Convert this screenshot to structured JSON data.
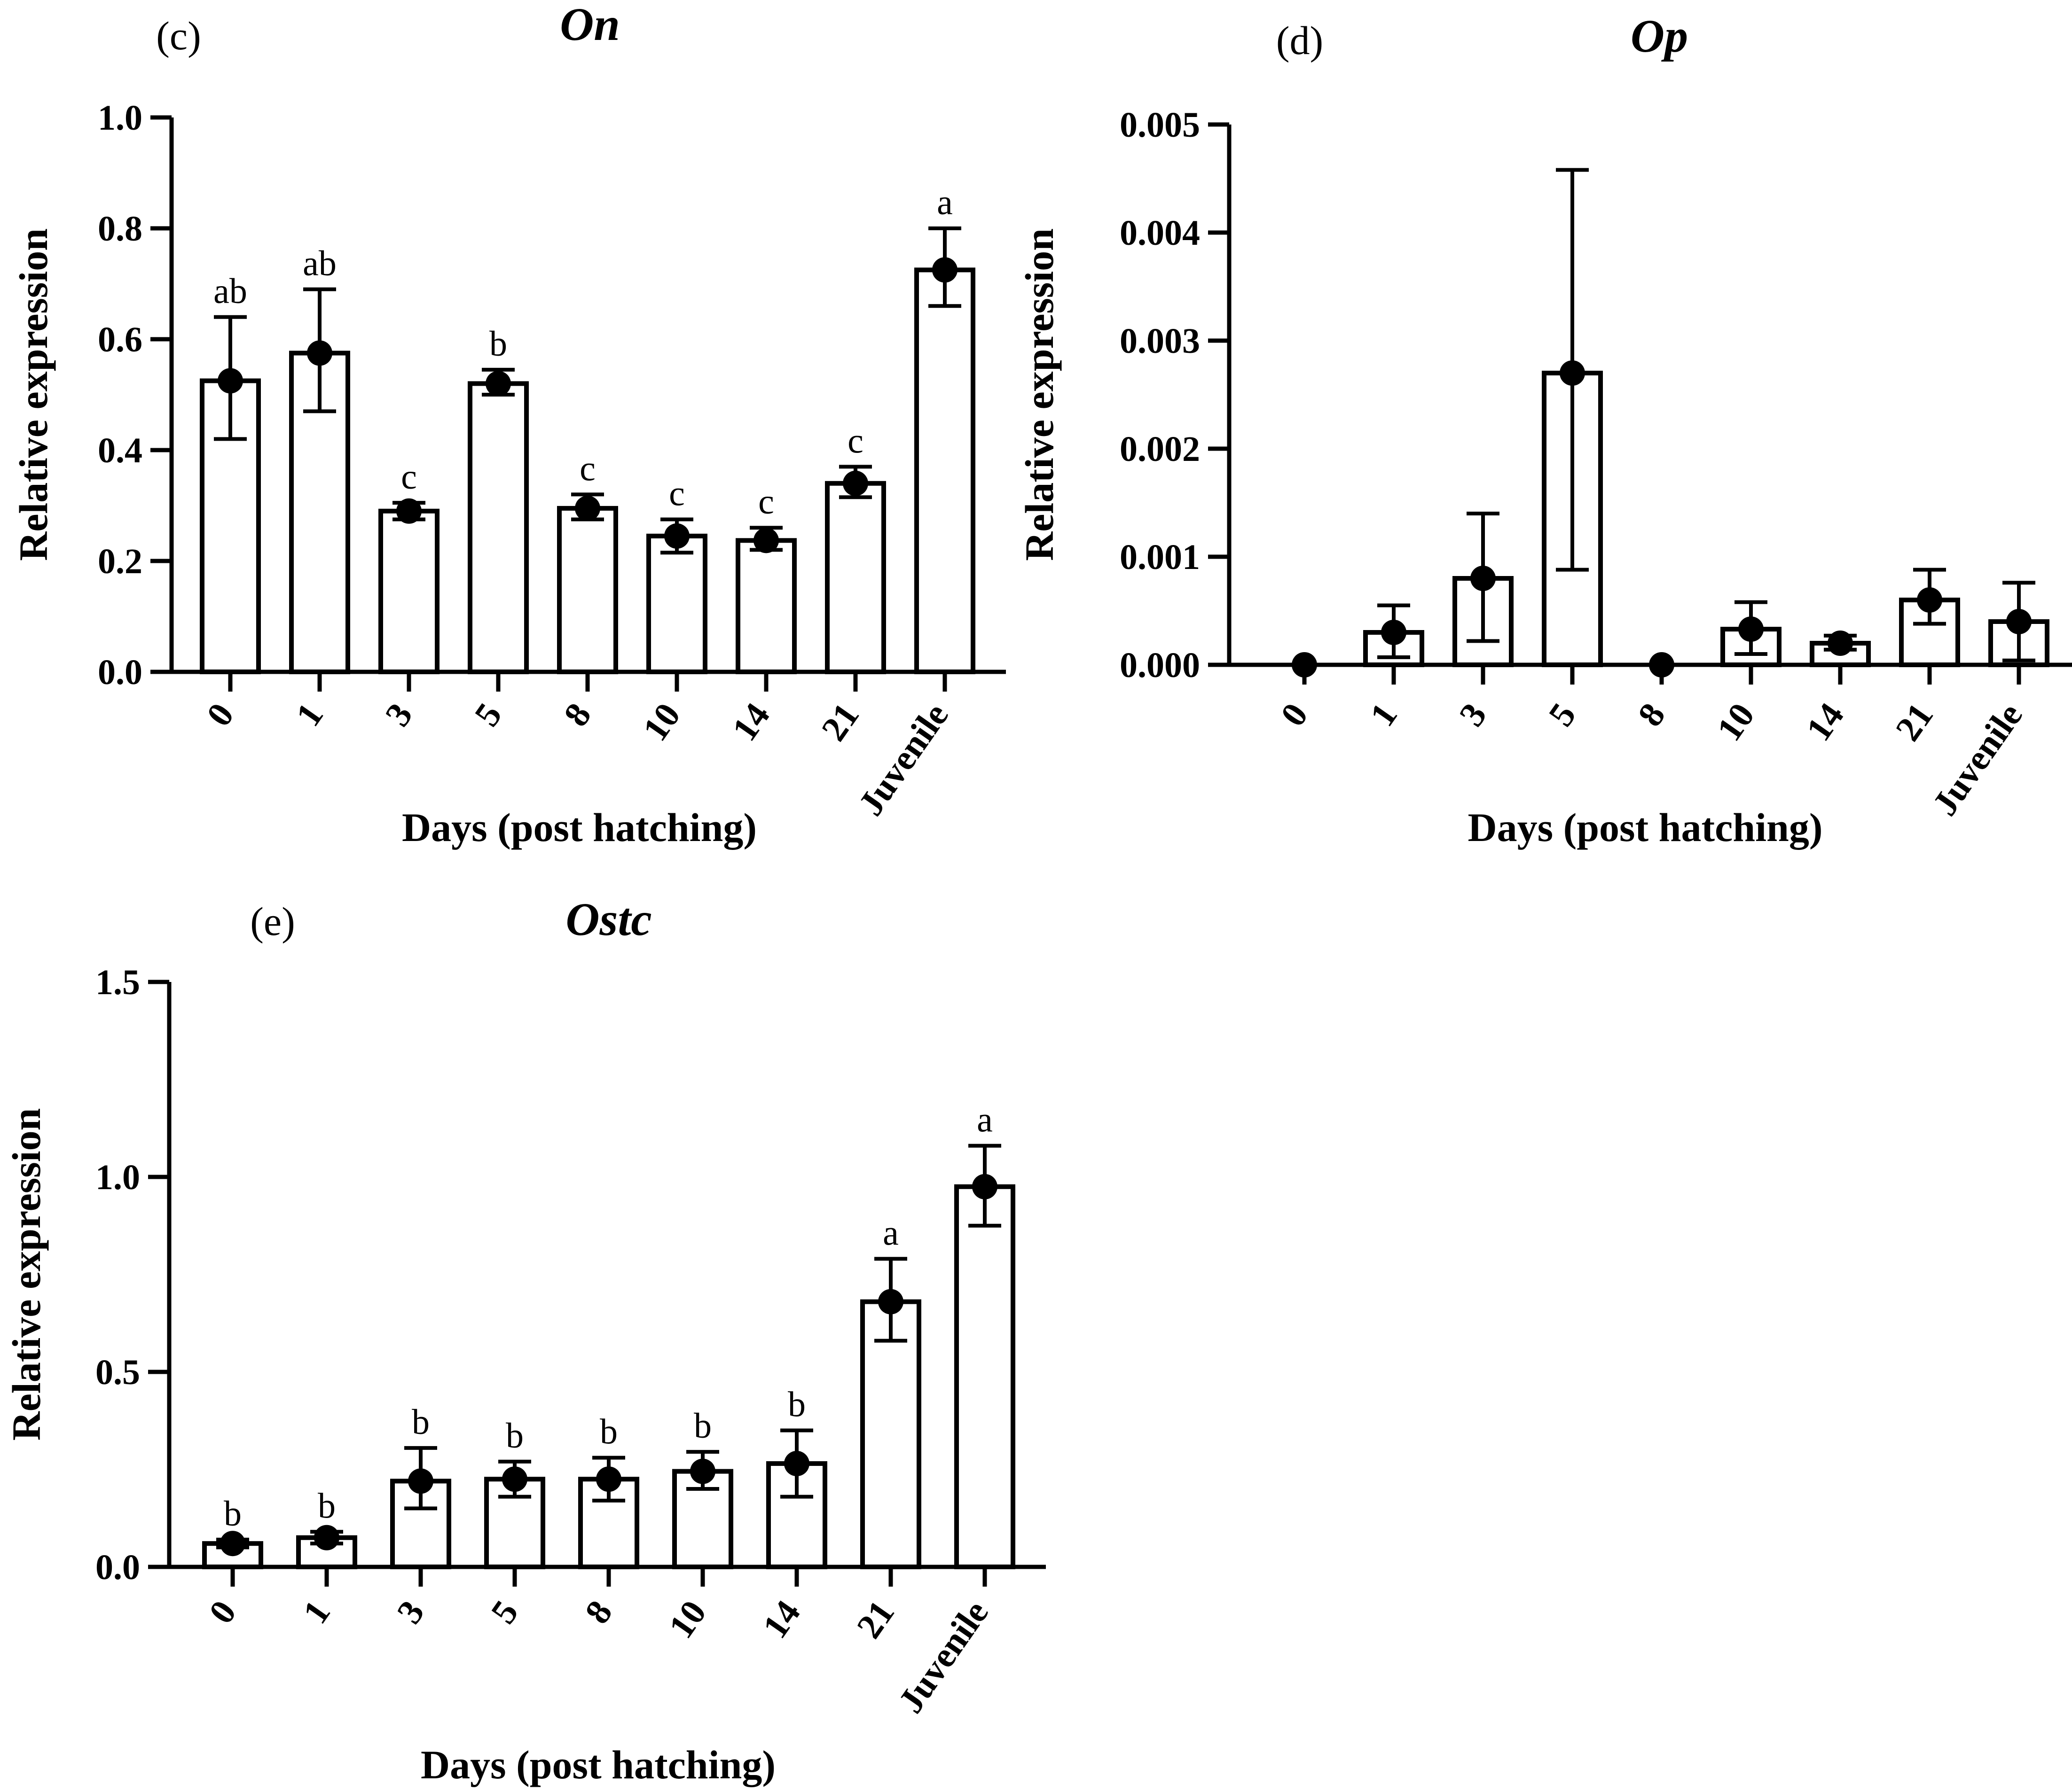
{
  "figure": {
    "colors": {
      "ink": "#000000",
      "bar_fill": "#ffffff"
    }
  },
  "chart_data": [
    {
      "type": "bar",
      "panel_label": "(c)",
      "title": "On",
      "xlabel": "Days (post hatching)",
      "ylabel": "Relative expression",
      "ylim": [
        0,
        1.0
      ],
      "yticks": [
        0.0,
        0.2,
        0.4,
        0.6,
        0.8,
        1.0
      ],
      "ytick_labels": [
        "0.0",
        "0.2",
        "0.4",
        "0.6",
        "0.8",
        "1.0"
      ],
      "categories": [
        "0",
        "1",
        "3",
        "5",
        "8",
        "10",
        "14",
        "21",
        "Juvenile"
      ],
      "values": [
        0.525,
        0.575,
        0.29,
        0.52,
        0.295,
        0.245,
        0.237,
        0.34,
        0.725
      ],
      "error_upper": [
        0.64,
        0.69,
        0.305,
        0.545,
        0.32,
        0.275,
        0.26,
        0.37,
        0.8
      ],
      "error_lower": [
        0.42,
        0.47,
        0.275,
        0.5,
        0.275,
        0.215,
        0.22,
        0.315,
        0.66
      ],
      "significance": [
        "ab",
        "ab",
        "c",
        "b",
        "c",
        "c",
        "c",
        "c",
        "a"
      ]
    },
    {
      "type": "bar",
      "panel_label": "(d)",
      "title": "Op",
      "xlabel": "Days (post hatching)",
      "ylabel": "Relative expression",
      "ylim": [
        0,
        0.005
      ],
      "yticks": [
        0.0,
        0.001,
        0.002,
        0.003,
        0.004,
        0.005
      ],
      "ytick_labels": [
        "0.000",
        "0.001",
        "0.002",
        "0.003",
        "0.004",
        "0.005"
      ],
      "categories": [
        "0",
        "1",
        "3",
        "5",
        "8",
        "10",
        "14",
        "21",
        "Juvenile"
      ],
      "values": [
        0.0,
        0.0003,
        0.0008,
        0.0027,
        0.0,
        0.00033,
        0.0002,
        0.0006,
        0.0004
      ],
      "error_upper": [
        0.0,
        0.00055,
        0.0014,
        0.00458,
        0.0,
        0.00058,
        0.00027,
        0.00088,
        0.00076
      ],
      "error_lower": [
        0.0,
        7e-05,
        0.00022,
        0.00088,
        0.0,
        0.0001,
        0.00014,
        0.00038,
        4e-05
      ],
      "significance": [
        "",
        "",
        "",
        "",
        "",
        "",
        "",
        "",
        ""
      ]
    },
    {
      "type": "bar",
      "panel_label": "(e)",
      "title": "Ostc",
      "xlabel": "Days (post hatching)",
      "ylabel": "Relative expression",
      "ylim": [
        0,
        1.5
      ],
      "yticks": [
        0.0,
        0.5,
        1.0,
        1.5
      ],
      "ytick_labels": [
        "0.0",
        "0.5",
        "1.0",
        "1.5"
      ],
      "categories": [
        "0",
        "1",
        "3",
        "5",
        "8",
        "10",
        "14",
        "21",
        "Juvenile"
      ],
      "values": [
        0.06,
        0.075,
        0.22,
        0.225,
        0.225,
        0.245,
        0.265,
        0.68,
        0.975
      ],
      "error_upper": [
        0.07,
        0.09,
        0.305,
        0.27,
        0.28,
        0.295,
        0.35,
        0.79,
        1.08
      ],
      "error_lower": [
        0.05,
        0.06,
        0.15,
        0.18,
        0.17,
        0.2,
        0.18,
        0.58,
        0.875
      ],
      "significance": [
        "b",
        "b",
        "b",
        "b",
        "b",
        "b",
        "b",
        "a",
        "a"
      ]
    }
  ]
}
